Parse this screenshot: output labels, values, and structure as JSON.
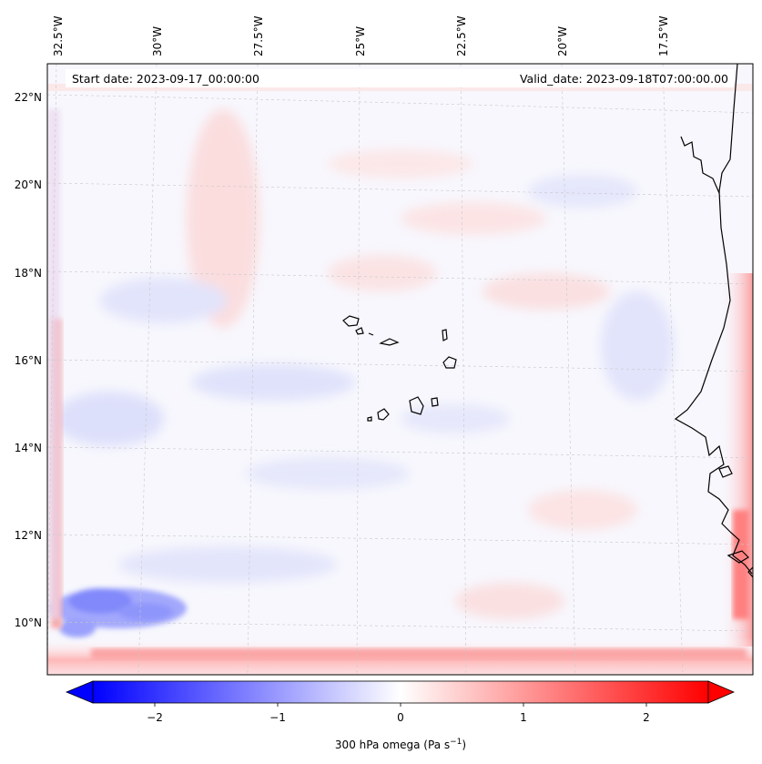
{
  "header": {
    "start_date": "Start date: 2023-09-17_00:00:00",
    "valid_date": "Valid_date: 2023-09-18T07:00:00.00"
  },
  "map": {
    "lon_labels": [
      "32.5°W",
      "30°W",
      "27.5°W",
      "25°W",
      "22.5°W",
      "20°W",
      "17.5°W"
    ],
    "lat_labels": [
      "22°N",
      "20°N",
      "18°N",
      "16°N",
      "14°N",
      "12°N",
      "10°N"
    ],
    "extent": {
      "lon_min": -33.0,
      "lon_max": -15.5,
      "lat_min": 9.0,
      "lat_max": 22.7
    },
    "gridlines": true,
    "features": [
      "Cape Verde islands",
      "West African coastline"
    ]
  },
  "colorbar": {
    "label_prefix": "300 hPa omega (Pa s",
    "label_sup": "−1",
    "label_suffix": ")",
    "ticks": [
      "−2",
      "−1",
      "0",
      "1",
      "2"
    ],
    "range": [
      -2.7,
      2.7
    ],
    "extend": "both",
    "colors": {
      "negative": "#0000ff",
      "zero": "#ffffff",
      "positive": "#ff0000"
    }
  }
}
